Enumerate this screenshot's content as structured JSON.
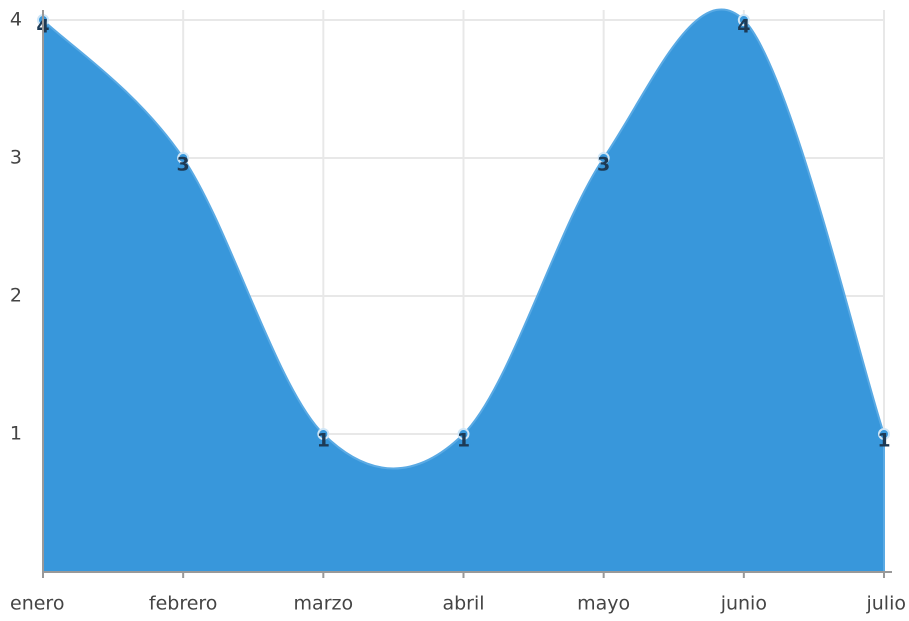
{
  "chart_data": {
    "type": "area",
    "categories": [
      "enero",
      "febrero",
      "marzo",
      "abril",
      "mayo",
      "junio",
      "julio"
    ],
    "values": [
      4,
      3,
      1,
      1,
      3,
      4,
      1
    ],
    "color": "#3897db",
    "ylim": [
      0,
      4
    ],
    "yticks": [
      1,
      2,
      3,
      4
    ],
    "grid": true
  }
}
